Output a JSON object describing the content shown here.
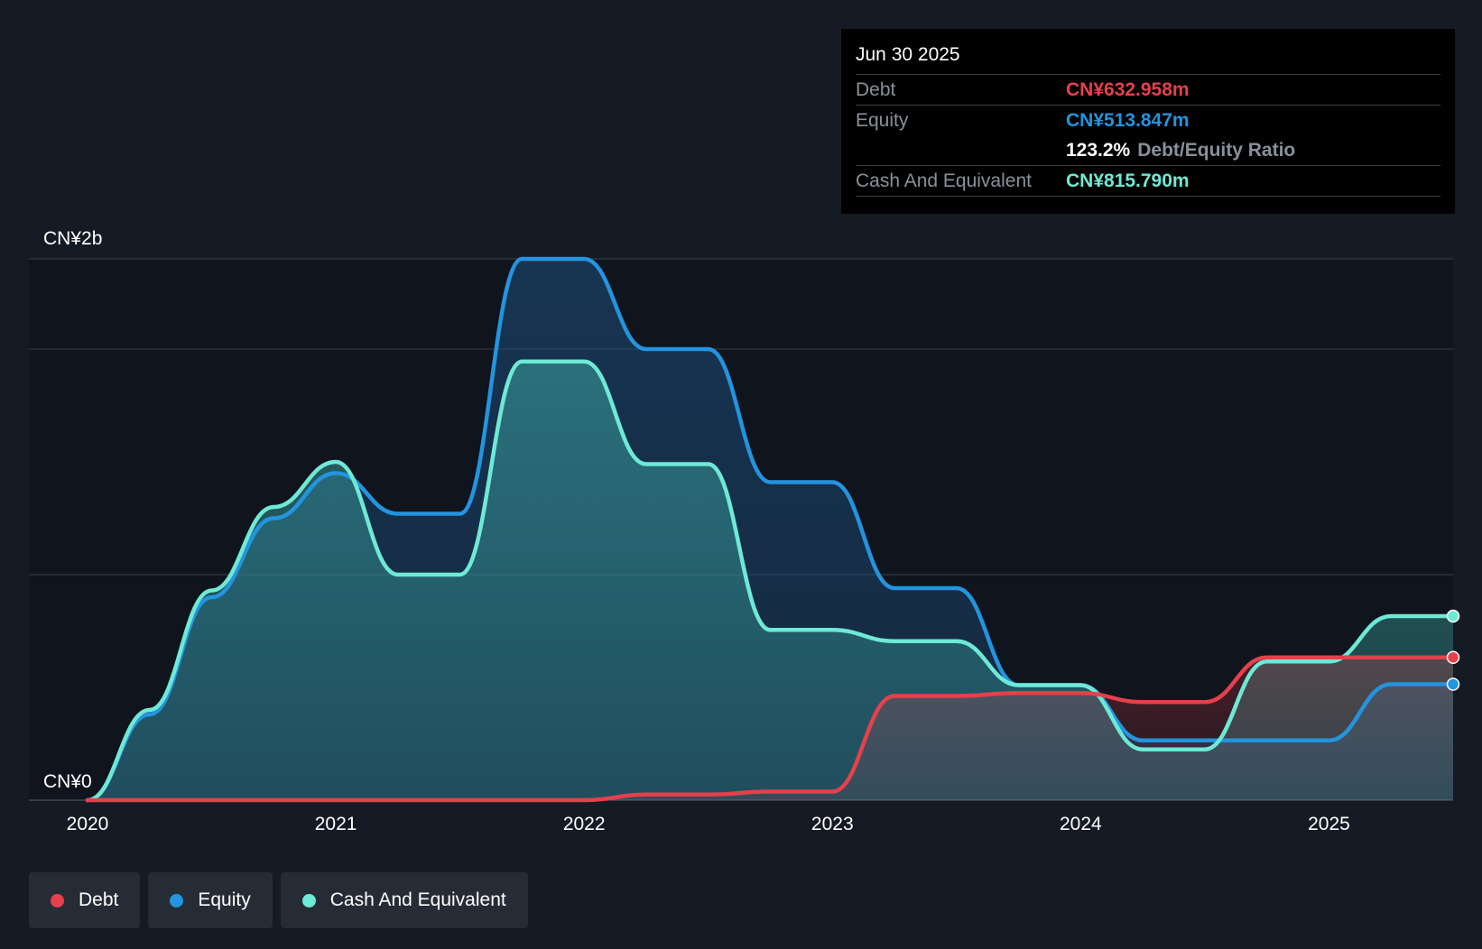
{
  "colors": {
    "debt": "#e5404b",
    "equity": "#2394df",
    "cash": "#6ee9d6",
    "background": "#151b24",
    "plot_background": "#10141c"
  },
  "tooltip": {
    "date": "Jun 30 2025",
    "debt_label": "Debt",
    "debt_value": "CN¥632.958m",
    "equity_label": "Equity",
    "equity_value": "CN¥513.847m",
    "ratio_value": "123.2%",
    "ratio_label": "Debt/Equity Ratio",
    "cash_label": "Cash And Equivalent",
    "cash_value": "CN¥815.790m"
  },
  "legend": {
    "debt": "Debt",
    "equity": "Equity",
    "cash": "Cash And Equivalent"
  },
  "chart_data": {
    "type": "area",
    "title": "",
    "xlabel": "",
    "ylabel": "",
    "ylim": [
      0,
      2400
    ],
    "y_unit": "CN¥m",
    "y_tick_labels": [
      {
        "value": 2400,
        "label": "CN¥2b"
      },
      {
        "value": 0,
        "label": "CN¥0"
      }
    ],
    "y_gridlines": [
      0,
      1000,
      2000,
      2400
    ],
    "xlim": [
      2020.0,
      2025.5
    ],
    "x_ticks": [
      {
        "value": 2020,
        "label": "2020"
      },
      {
        "value": 2021,
        "label": "2021"
      },
      {
        "value": 2022,
        "label": "2022"
      },
      {
        "value": 2023,
        "label": "2023"
      },
      {
        "value": 2024,
        "label": "2024"
      },
      {
        "value": 2025,
        "label": "2025"
      }
    ],
    "series": [
      {
        "key": "debt",
        "name": "Debt",
        "points": [
          [
            2020.0,
            0
          ],
          [
            2021.0,
            0
          ],
          [
            2021.75,
            0
          ],
          [
            2022.0,
            0
          ],
          [
            2022.25,
            25
          ],
          [
            2022.5,
            25
          ],
          [
            2022.75,
            38
          ],
          [
            2023.0,
            38
          ],
          [
            2023.25,
            462
          ],
          [
            2023.5,
            462
          ],
          [
            2023.75,
            475
          ],
          [
            2024.0,
            475
          ],
          [
            2024.25,
            435
          ],
          [
            2024.5,
            435
          ],
          [
            2024.75,
            633
          ],
          [
            2025.0,
            633
          ],
          [
            2025.25,
            633
          ],
          [
            2025.5,
            633
          ]
        ]
      },
      {
        "key": "equity",
        "name": "Equity",
        "points": [
          [
            2020.0,
            0
          ],
          [
            2020.25,
            380
          ],
          [
            2020.5,
            900
          ],
          [
            2020.75,
            1250
          ],
          [
            2021.0,
            1450
          ],
          [
            2021.25,
            1270
          ],
          [
            2021.5,
            1270
          ],
          [
            2021.75,
            2400
          ],
          [
            2022.0,
            2400
          ],
          [
            2022.25,
            2000
          ],
          [
            2022.5,
            2000
          ],
          [
            2022.75,
            1410
          ],
          [
            2023.0,
            1410
          ],
          [
            2023.25,
            940
          ],
          [
            2023.5,
            940
          ],
          [
            2023.75,
            510
          ],
          [
            2024.0,
            510
          ],
          [
            2024.25,
            265
          ],
          [
            2024.5,
            265
          ],
          [
            2024.75,
            265
          ],
          [
            2025.0,
            265
          ],
          [
            2025.25,
            514
          ],
          [
            2025.5,
            514
          ]
        ]
      },
      {
        "key": "cash",
        "name": "Cash And Equivalent",
        "points": [
          [
            2020.0,
            0
          ],
          [
            2020.25,
            400
          ],
          [
            2020.5,
            930
          ],
          [
            2020.75,
            1300
          ],
          [
            2021.0,
            1500
          ],
          [
            2021.25,
            1000
          ],
          [
            2021.5,
            1000
          ],
          [
            2021.75,
            1945
          ],
          [
            2022.0,
            1945
          ],
          [
            2022.25,
            1490
          ],
          [
            2022.5,
            1490
          ],
          [
            2022.75,
            755
          ],
          [
            2023.0,
            755
          ],
          [
            2023.25,
            705
          ],
          [
            2023.5,
            705
          ],
          [
            2023.75,
            510
          ],
          [
            2024.0,
            510
          ],
          [
            2024.25,
            225
          ],
          [
            2024.5,
            225
          ],
          [
            2024.75,
            615
          ],
          [
            2025.0,
            615
          ],
          [
            2025.25,
            816
          ],
          [
            2025.5,
            816
          ]
        ]
      }
    ]
  }
}
